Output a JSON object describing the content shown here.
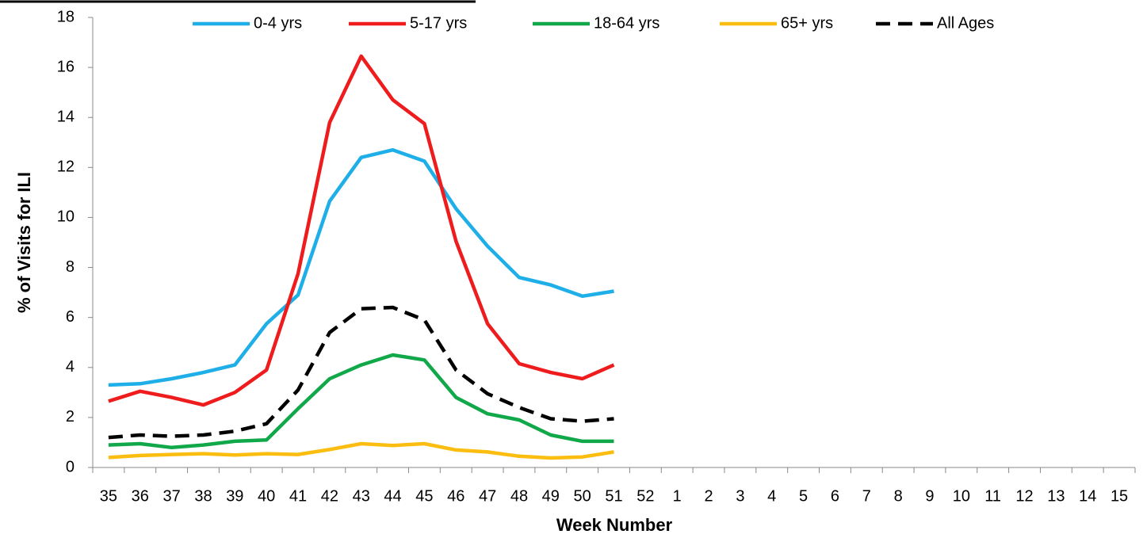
{
  "chart_data": {
    "type": "line",
    "ylabel": "% of Visits for ILI",
    "xlabel": "Week Number",
    "categories": [
      "35",
      "36",
      "37",
      "38",
      "39",
      "40",
      "41",
      "42",
      "43",
      "44",
      "45",
      "46",
      "47",
      "48",
      "49",
      "50",
      "51",
      "52",
      "1",
      "2",
      "3",
      "4",
      "5",
      "6",
      "7",
      "8",
      "9",
      "10",
      "11",
      "12",
      "13",
      "14",
      "15"
    ],
    "series": [
      {
        "name": "0-4 yrs",
        "color": "#1eaee8",
        "values": [
          3.3,
          3.35,
          3.55,
          3.8,
          4.1,
          5.75,
          6.9,
          10.65,
          12.4,
          12.7,
          12.25,
          10.35,
          8.85,
          7.6,
          7.3,
          6.85,
          7.05,
          null,
          null,
          null,
          null,
          null,
          null,
          null,
          null,
          null,
          null,
          null,
          null,
          null,
          null,
          null,
          null
        ]
      },
      {
        "name": "5-17 yrs",
        "color": "#ee1c1c",
        "values": [
          2.65,
          3.05,
          2.8,
          2.5,
          3.0,
          3.9,
          7.75,
          13.8,
          16.45,
          14.7,
          13.75,
          9.05,
          5.75,
          4.15,
          3.8,
          3.55,
          4.1,
          null,
          null,
          null,
          null,
          null,
          null,
          null,
          null,
          null,
          null,
          null,
          null,
          null,
          null,
          null,
          null
        ]
      },
      {
        "name": "18-64 yrs",
        "color": "#11a84a",
        "values": [
          0.9,
          0.95,
          0.8,
          0.9,
          1.05,
          1.1,
          2.35,
          3.55,
          4.1,
          4.5,
          4.3,
          2.8,
          2.15,
          1.9,
          1.3,
          1.05,
          1.05,
          null,
          null,
          null,
          null,
          null,
          null,
          null,
          null,
          null,
          null,
          null,
          null,
          null,
          null,
          null,
          null
        ]
      },
      {
        "name": "65+ yrs",
        "color": "#fbbd10",
        "values": [
          0.4,
          0.48,
          0.52,
          0.55,
          0.5,
          0.55,
          0.52,
          0.72,
          0.95,
          0.88,
          0.95,
          0.7,
          0.62,
          0.45,
          0.38,
          0.42,
          0.62,
          null,
          null,
          null,
          null,
          null,
          null,
          null,
          null,
          null,
          null,
          null,
          null,
          null,
          null,
          null,
          null
        ]
      },
      {
        "name": "All Ages",
        "color": "#000000",
        "dash": true,
        "values": [
          1.2,
          1.3,
          1.25,
          1.3,
          1.45,
          1.75,
          3.1,
          5.4,
          6.35,
          6.4,
          5.9,
          3.9,
          2.95,
          2.4,
          1.95,
          1.85,
          1.95,
          null,
          null,
          null,
          null,
          null,
          null,
          null,
          null,
          null,
          null,
          null,
          null,
          null,
          null,
          null,
          null
        ]
      }
    ],
    "ylim": [
      0,
      18
    ],
    "yticks": [
      0,
      2,
      4,
      6,
      8,
      10,
      12,
      14,
      16,
      18
    ],
    "grid": false,
    "legend": "top"
  }
}
